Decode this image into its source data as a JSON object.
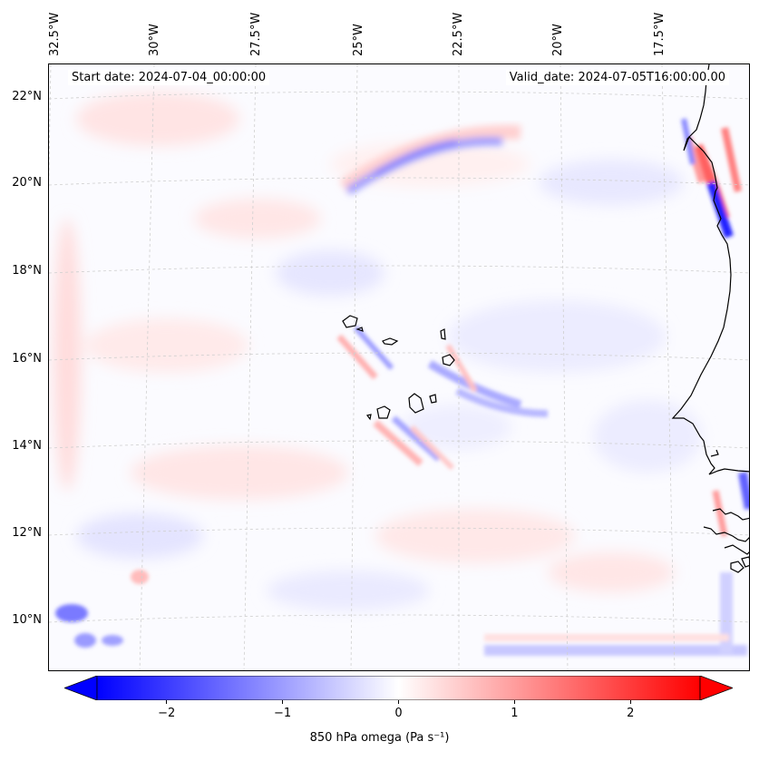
{
  "header": {
    "start_date": "Start date: 2024-07-04_00:00:00",
    "valid_date": "Valid_date: 2024-07-05T16:00:00.00"
  },
  "map": {
    "projection": "lambert-conformal",
    "longitude_labels": [
      "32.5°W",
      "30°W",
      "27.5°W",
      "25°W",
      "22.5°W",
      "20°W",
      "17.5°W"
    ],
    "latitude_labels": [
      "22°N",
      "20°N",
      "18°N",
      "16°N",
      "14°N",
      "12°N",
      "10°N"
    ],
    "gridlines": true,
    "gridline_color": "#c8c8c8",
    "coastline_color": "#000000",
    "field": "850 hPa omega",
    "features": [
      "Cape Verde islands",
      "West African coastline (Mauritania, Senegal, Gambia, Guinea-Bissau)"
    ]
  },
  "colorbar": {
    "label": "850 hPa omega (Pa s⁻¹)",
    "colormap": "bwr",
    "min": -2.6,
    "max": 2.6,
    "extend": "both",
    "low_color": "#0000ff",
    "mid_color": "#ffffff",
    "high_color": "#ff0000",
    "ticks": [
      {
        "value": -2,
        "label": "−2"
      },
      {
        "value": -1,
        "label": "−1"
      },
      {
        "value": 0,
        "label": "0"
      },
      {
        "value": 1,
        "label": "1"
      },
      {
        "value": 2,
        "label": "2"
      }
    ]
  }
}
